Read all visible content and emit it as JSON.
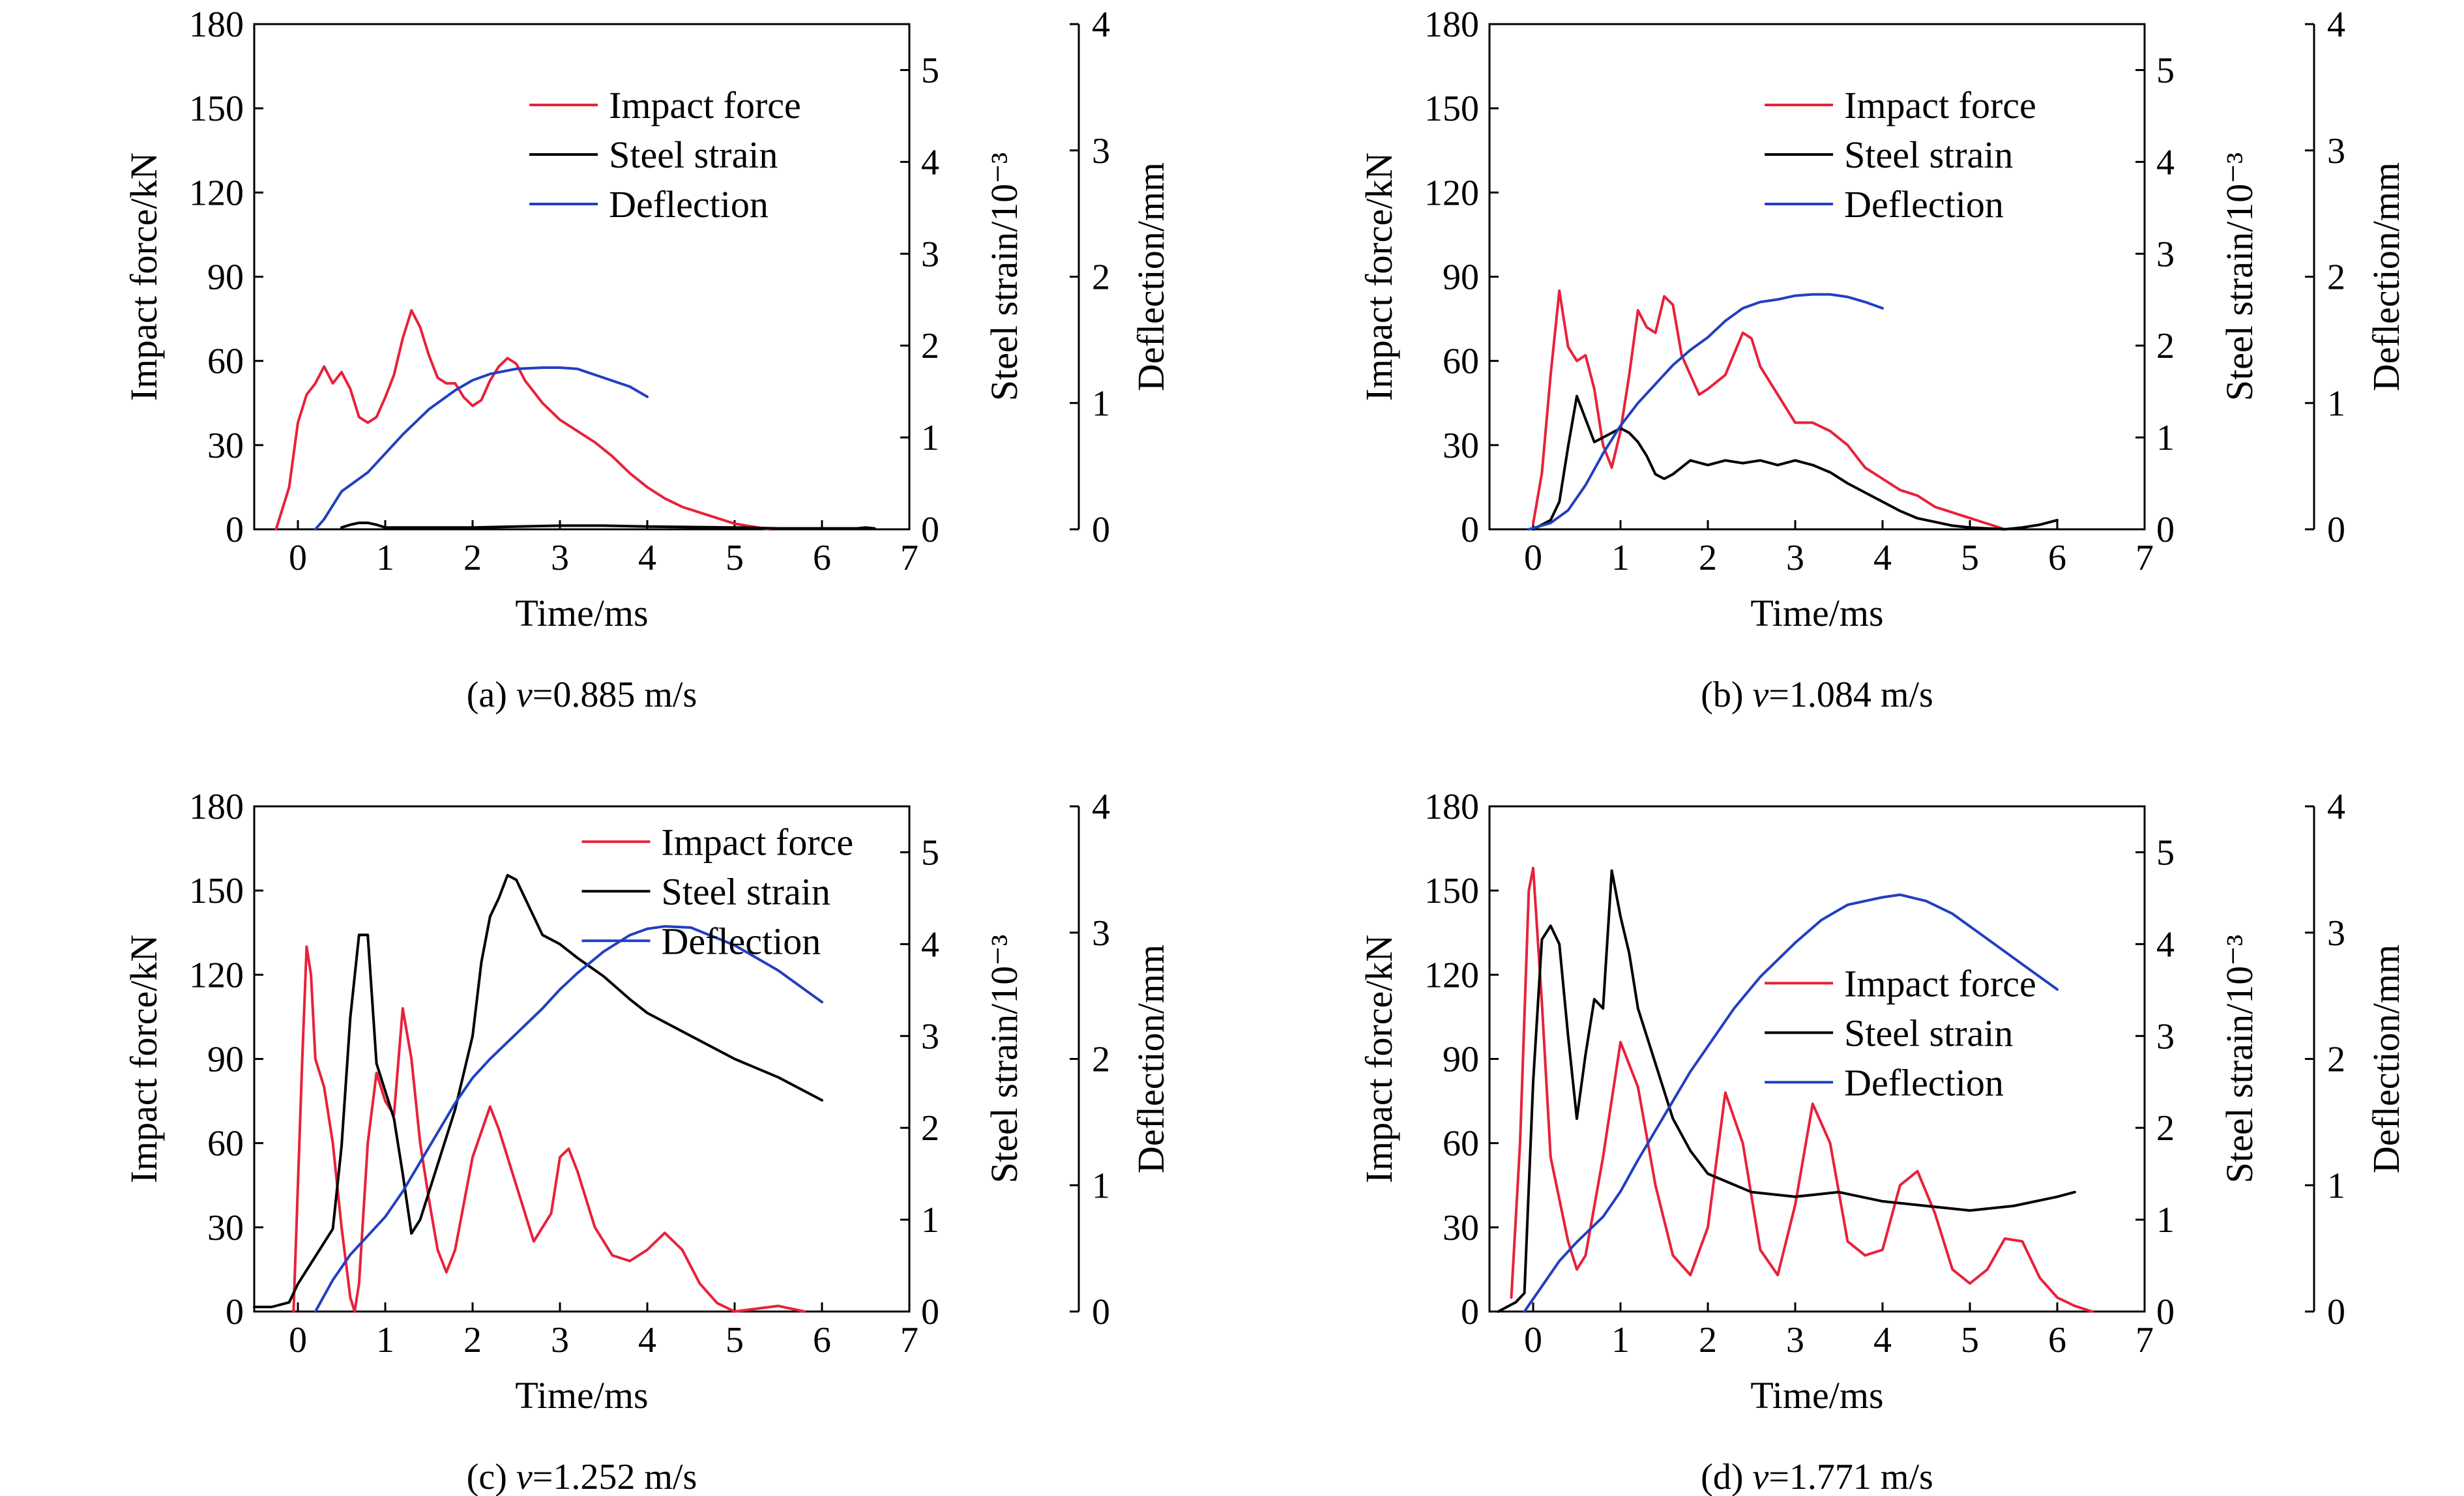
{
  "chart_data": [
    {
      "type": "line",
      "caption": "(a) v=0.885 m/s",
      "caption_prefix": "(a) ",
      "caption_var": "v",
      "caption_suffix": "=0.885 m/s",
      "xlabel": "Time/ms",
      "ylabel_left": "Impact force/kN",
      "ylabel_right1": "Steel strain/10⁻³",
      "ylabel_right2": "Deflection/mm",
      "xlim": [
        -0.5,
        7
      ],
      "xticks": [
        0,
        1,
        2,
        3,
        4,
        5,
        6,
        7
      ],
      "ylim_left": [
        0,
        180
      ],
      "yticks_left": [
        0,
        30,
        60,
        90,
        120,
        150,
        180
      ],
      "ylim_right1": [
        0,
        5.5
      ],
      "yticks_right1": [
        0,
        1,
        2,
        3,
        4,
        5
      ],
      "ylim_right2": [
        0,
        4
      ],
      "yticks_right2": [
        0,
        1,
        2,
        3,
        4
      ],
      "legend_position": "top-center",
      "series": [
        {
          "name": "Impact force",
          "color": "#e8213a",
          "axis": "left",
          "x": [
            -0.25,
            -0.1,
            0.0,
            0.1,
            0.2,
            0.3,
            0.4,
            0.5,
            0.6,
            0.7,
            0.8,
            0.9,
            1.0,
            1.1,
            1.2,
            1.3,
            1.4,
            1.5,
            1.6,
            1.7,
            1.8,
            1.9,
            2.0,
            2.1,
            2.2,
            2.3,
            2.4,
            2.5,
            2.6,
            2.7,
            2.8,
            2.9,
            3.0,
            3.2,
            3.4,
            3.6,
            3.8,
            4.0,
            4.2,
            4.4,
            4.6,
            4.8,
            5.0,
            5.2,
            5.4
          ],
          "y": [
            0,
            15,
            38,
            48,
            52,
            58,
            52,
            56,
            50,
            40,
            38,
            40,
            47,
            55,
            68,
            78,
            72,
            62,
            54,
            52,
            52,
            47,
            44,
            46,
            53,
            58,
            61,
            59,
            53,
            49,
            45,
            42,
            39,
            35,
            31,
            26,
            20,
            15,
            11,
            8,
            6,
            4,
            2,
            1,
            0
          ]
        },
        {
          "name": "Steel strain",
          "color": "#000000",
          "axis": "right1",
          "x": [
            0.5,
            0.6,
            0.7,
            0.8,
            0.9,
            1.0,
            1.2,
            2.0,
            2.5,
            3.0,
            3.5,
            4.0,
            5.0,
            5.5,
            6.0,
            6.4,
            6.5,
            6.6
          ],
          "y": [
            0.02,
            0.05,
            0.07,
            0.07,
            0.05,
            0.02,
            0.02,
            0.02,
            0.03,
            0.04,
            0.04,
            0.03,
            0.02,
            0.01,
            0.01,
            0.01,
            0.02,
            0.01
          ]
        },
        {
          "name": "Deflection",
          "color": "#2040c0",
          "axis": "right2",
          "x": [
            0.2,
            0.3,
            0.5,
            0.8,
            1.0,
            1.2,
            1.5,
            1.8,
            2.0,
            2.2,
            2.5,
            2.8,
            3.0,
            3.2,
            3.5,
            3.8,
            4.0
          ],
          "y": [
            0.0,
            0.08,
            0.3,
            0.45,
            0.6,
            0.75,
            0.95,
            1.1,
            1.18,
            1.23,
            1.27,
            1.28,
            1.28,
            1.27,
            1.2,
            1.13,
            1.05
          ]
        }
      ]
    },
    {
      "type": "line",
      "caption": "(b) v=1.084 m/s",
      "caption_prefix": "(b) ",
      "caption_var": "v",
      "caption_suffix": "=1.084 m/s",
      "xlabel": "Time/ms",
      "ylabel_left": "Impact force/kN",
      "ylabel_right1": "Steel strain/10⁻³",
      "ylabel_right2": "Deflection/mm",
      "xlim": [
        -0.5,
        7
      ],
      "xticks": [
        0,
        1,
        2,
        3,
        4,
        5,
        6,
        7
      ],
      "ylim_left": [
        0,
        180
      ],
      "yticks_left": [
        0,
        30,
        60,
        90,
        120,
        150,
        180
      ],
      "ylim_right1": [
        0,
        5.5
      ],
      "yticks_right1": [
        0,
        1,
        2,
        3,
        4,
        5
      ],
      "ylim_right2": [
        0,
        4
      ],
      "yticks_right2": [
        0,
        1,
        2,
        3,
        4
      ],
      "legend_position": "top-center",
      "series": [
        {
          "name": "Impact force",
          "color": "#e8213a",
          "axis": "left",
          "x": [
            0.0,
            0.1,
            0.2,
            0.3,
            0.4,
            0.5,
            0.6,
            0.7,
            0.8,
            0.9,
            1.0,
            1.1,
            1.2,
            1.3,
            1.4,
            1.5,
            1.6,
            1.7,
            1.8,
            1.9,
            2.0,
            2.2,
            2.4,
            2.5,
            2.6,
            2.8,
            3.0,
            3.2,
            3.4,
            3.6,
            3.8,
            4.0,
            4.2,
            4.4,
            4.6,
            4.8,
            5.0,
            5.2,
            5.4
          ],
          "y": [
            2,
            20,
            55,
            85,
            65,
            60,
            62,
            50,
            30,
            22,
            35,
            55,
            78,
            72,
            70,
            83,
            80,
            62,
            55,
            48,
            50,
            55,
            70,
            68,
            58,
            48,
            38,
            38,
            35,
            30,
            22,
            18,
            14,
            12,
            8,
            6,
            4,
            2,
            0
          ]
        },
        {
          "name": "Steel strain",
          "color": "#000000",
          "axis": "right1",
          "x": [
            0.0,
            0.1,
            0.2,
            0.3,
            0.4,
            0.5,
            0.6,
            0.7,
            0.8,
            1.0,
            1.1,
            1.2,
            1.3,
            1.4,
            1.5,
            1.6,
            1.8,
            2.0,
            2.2,
            2.4,
            2.6,
            2.8,
            3.0,
            3.2,
            3.4,
            3.6,
            3.8,
            4.0,
            4.2,
            4.4,
            4.6,
            4.8,
            5.0,
            5.2,
            5.4,
            5.6,
            5.8,
            6.0
          ],
          "y": [
            0.0,
            0.05,
            0.1,
            0.3,
            0.9,
            1.45,
            1.2,
            0.95,
            1.0,
            1.1,
            1.05,
            0.95,
            0.8,
            0.6,
            0.55,
            0.6,
            0.75,
            0.7,
            0.75,
            0.72,
            0.75,
            0.7,
            0.75,
            0.7,
            0.62,
            0.5,
            0.4,
            0.3,
            0.2,
            0.12,
            0.08,
            0.04,
            0.02,
            0.01,
            0.0,
            0.02,
            0.05,
            0.1
          ]
        },
        {
          "name": "Deflection",
          "color": "#2040c0",
          "axis": "right2",
          "x": [
            -0.05,
            0.2,
            0.4,
            0.6,
            0.8,
            1.0,
            1.2,
            1.4,
            1.6,
            1.8,
            2.0,
            2.2,
            2.4,
            2.6,
            2.8,
            3.0,
            3.2,
            3.4,
            3.6,
            3.8,
            4.0
          ],
          "y": [
            0.0,
            0.05,
            0.15,
            0.35,
            0.6,
            0.82,
            1.0,
            1.15,
            1.3,
            1.42,
            1.52,
            1.65,
            1.75,
            1.8,
            1.82,
            1.85,
            1.86,
            1.86,
            1.84,
            1.8,
            1.75
          ]
        }
      ]
    },
    {
      "type": "line",
      "caption": "(c) v=1.252 m/s",
      "caption_prefix": "(c) ",
      "caption_var": "v",
      "caption_suffix": "=1.252 m/s",
      "xlabel": "Time/ms",
      "ylabel_left": "Impact force/kN",
      "ylabel_right1": "Steel strain/10⁻³",
      "ylabel_right2": "Deflection/mm",
      "xlim": [
        -0.5,
        7
      ],
      "xticks": [
        0,
        1,
        2,
        3,
        4,
        5,
        6,
        7
      ],
      "ylim_left": [
        0,
        180
      ],
      "yticks_left": [
        0,
        30,
        60,
        90,
        120,
        150,
        180
      ],
      "ylim_right1": [
        0,
        5.5
      ],
      "yticks_right1": [
        0,
        1,
        2,
        3,
        4,
        5
      ],
      "ylim_right2": [
        0,
        4
      ],
      "yticks_right2": [
        0,
        1,
        2,
        3,
        4
      ],
      "legend_position": "top-right",
      "series": [
        {
          "name": "Impact force",
          "color": "#e8213a",
          "axis": "left",
          "x": [
            -0.05,
            0.05,
            0.1,
            0.15,
            0.2,
            0.3,
            0.4,
            0.5,
            0.6,
            0.65,
            0.7,
            0.8,
            0.9,
            1.0,
            1.1,
            1.2,
            1.3,
            1.4,
            1.5,
            1.6,
            1.7,
            1.8,
            2.0,
            2.2,
            2.3,
            2.5,
            2.7,
            2.9,
            3.0,
            3.1,
            3.2,
            3.4,
            3.6,
            3.8,
            4.0,
            4.2,
            4.4,
            4.6,
            4.8,
            5.0,
            5.5,
            5.8
          ],
          "y": [
            0,
            90,
            130,
            120,
            90,
            80,
            60,
            30,
            5,
            0,
            10,
            60,
            85,
            75,
            70,
            108,
            90,
            60,
            40,
            22,
            14,
            22,
            55,
            73,
            65,
            45,
            25,
            35,
            55,
            58,
            50,
            30,
            20,
            18,
            22,
            28,
            22,
            10,
            3,
            0,
            2,
            0
          ]
        },
        {
          "name": "Steel strain",
          "color": "#000000",
          "axis": "right1",
          "x": [
            -0.5,
            -0.3,
            -0.1,
            0.0,
            0.2,
            0.4,
            0.5,
            0.6,
            0.7,
            0.8,
            0.9,
            1.0,
            1.1,
            1.2,
            1.3,
            1.4,
            1.5,
            1.6,
            1.8,
            2.0,
            2.1,
            2.2,
            2.3,
            2.4,
            2.5,
            2.6,
            2.8,
            3.0,
            3.2,
            3.5,
            3.8,
            4.0,
            4.5,
            5.0,
            5.5,
            6.0
          ],
          "y": [
            0.05,
            0.05,
            0.1,
            0.3,
            0.6,
            0.9,
            1.8,
            3.2,
            4.1,
            4.1,
            2.7,
            2.4,
            2.1,
            1.5,
            0.85,
            1.0,
            1.3,
            1.6,
            2.2,
            3.0,
            3.8,
            4.3,
            4.5,
            4.75,
            4.7,
            4.5,
            4.1,
            4.0,
            3.85,
            3.65,
            3.4,
            3.25,
            3.0,
            2.75,
            2.55,
            2.3
          ]
        },
        {
          "name": "Deflection",
          "color": "#2040c0",
          "axis": "right2",
          "x": [
            0.2,
            0.4,
            0.6,
            0.8,
            1.0,
            1.2,
            1.5,
            1.8,
            2.0,
            2.2,
            2.5,
            2.8,
            3.0,
            3.2,
            3.5,
            3.8,
            4.0,
            4.2,
            4.5,
            5.0,
            5.5,
            6.0
          ],
          "y": [
            0.0,
            0.25,
            0.45,
            0.6,
            0.75,
            0.95,
            1.3,
            1.65,
            1.85,
            2.0,
            2.2,
            2.4,
            2.55,
            2.68,
            2.85,
            2.98,
            3.03,
            3.05,
            3.04,
            2.9,
            2.7,
            2.45
          ]
        }
      ]
    },
    {
      "type": "line",
      "caption": "(d) v=1.771 m/s",
      "caption_prefix": "(d) ",
      "caption_var": "v",
      "caption_suffix": "=1.771 m/s",
      "xlabel": "Time/ms",
      "ylabel_left": "Impact force/kN",
      "ylabel_right1": "Steel strain/10⁻³",
      "ylabel_right2": "Deflection/mm",
      "xlim": [
        -0.5,
        7
      ],
      "xticks": [
        0,
        1,
        2,
        3,
        4,
        5,
        6,
        7
      ],
      "ylim_left": [
        0,
        180
      ],
      "yticks_left": [
        0,
        30,
        60,
        90,
        120,
        150,
        180
      ],
      "ylim_right1": [
        0,
        5.5
      ],
      "yticks_right1": [
        0,
        1,
        2,
        3,
        4,
        5
      ],
      "ylim_right2": [
        0,
        4
      ],
      "yticks_right2": [
        0,
        1,
        2,
        3,
        4
      ],
      "legend_position": "center-right",
      "series": [
        {
          "name": "Impact force",
          "color": "#e8213a",
          "axis": "left",
          "x": [
            -0.25,
            -0.15,
            -0.05,
            0.0,
            0.1,
            0.2,
            0.3,
            0.4,
            0.5,
            0.6,
            0.8,
            1.0,
            1.2,
            1.4,
            1.6,
            1.8,
            2.0,
            2.2,
            2.4,
            2.6,
            2.8,
            3.0,
            3.2,
            3.4,
            3.6,
            3.8,
            4.0,
            4.2,
            4.4,
            4.6,
            4.8,
            5.0,
            5.2,
            5.4,
            5.6,
            5.8,
            6.0,
            6.2,
            6.4
          ],
          "y": [
            5,
            60,
            150,
            158,
            110,
            55,
            40,
            25,
            15,
            20,
            55,
            96,
            80,
            45,
            20,
            13,
            30,
            78,
            60,
            22,
            13,
            38,
            74,
            60,
            25,
            20,
            22,
            45,
            50,
            35,
            15,
            10,
            15,
            26,
            25,
            12,
            5,
            2,
            0
          ]
        },
        {
          "name": "Steel strain",
          "color": "#000000",
          "axis": "right1",
          "x": [
            -0.4,
            -0.2,
            -0.1,
            0.0,
            0.1,
            0.2,
            0.3,
            0.4,
            0.5,
            0.6,
            0.7,
            0.8,
            0.9,
            1.0,
            1.1,
            1.2,
            1.4,
            1.6,
            1.8,
            2.0,
            2.5,
            3.0,
            3.5,
            4.0,
            4.5,
            5.0,
            5.5,
            6.0,
            6.2
          ],
          "y": [
            0.0,
            0.1,
            0.2,
            2.5,
            4.05,
            4.2,
            4.0,
            3.0,
            2.1,
            2.8,
            3.4,
            3.3,
            4.8,
            4.3,
            3.9,
            3.3,
            2.7,
            2.1,
            1.75,
            1.5,
            1.3,
            1.25,
            1.3,
            1.2,
            1.15,
            1.1,
            1.15,
            1.25,
            1.3
          ]
        },
        {
          "name": "Deflection",
          "color": "#2040c0",
          "axis": "right2",
          "x": [
            -0.1,
            0.1,
            0.3,
            0.5,
            0.8,
            1.0,
            1.2,
            1.5,
            1.8,
            2.0,
            2.3,
            2.6,
            3.0,
            3.3,
            3.6,
            4.0,
            4.2,
            4.5,
            4.8,
            5.0,
            5.3,
            5.6,
            6.0
          ],
          "y": [
            0.0,
            0.2,
            0.4,
            0.55,
            0.75,
            0.95,
            1.2,
            1.55,
            1.9,
            2.1,
            2.4,
            2.65,
            2.92,
            3.1,
            3.22,
            3.28,
            3.3,
            3.25,
            3.15,
            3.05,
            2.9,
            2.75,
            2.55
          ]
        }
      ]
    }
  ]
}
